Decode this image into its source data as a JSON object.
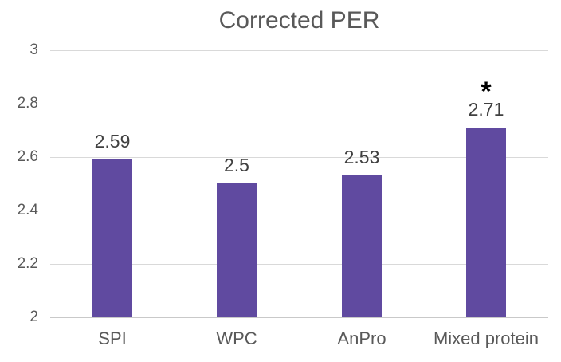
{
  "chart_data": {
    "type": "bar",
    "title": "Corrected PER",
    "categories": [
      "SPI",
      "WPC",
      "AnPro",
      "Mixed protein"
    ],
    "values": [
      2.59,
      2.5,
      2.53,
      2.71
    ],
    "data_labels": [
      "2.59",
      "2.5",
      "2.53",
      "2.71"
    ],
    "xlabel": "",
    "ylabel": "",
    "ylim": [
      2,
      3
    ],
    "yticks": [
      3,
      2.8,
      2.6,
      2.4,
      2.2,
      2
    ],
    "ytick_labels": [
      "3",
      "2.8",
      "2.6",
      "2.4",
      "2.2",
      "2"
    ],
    "grid": true,
    "legend": false,
    "annotation": {
      "category": "Mixed protein",
      "symbol": "*"
    },
    "colors": {
      "bar": "#604AA0",
      "gridline": "#D9D9D9",
      "axis_line": "#C9C9C9",
      "background": "#FFFFFF",
      "title_text": "#595959",
      "tick_text": "#595959",
      "data_label_text": "#404040",
      "annotation_text": "#000000"
    }
  }
}
